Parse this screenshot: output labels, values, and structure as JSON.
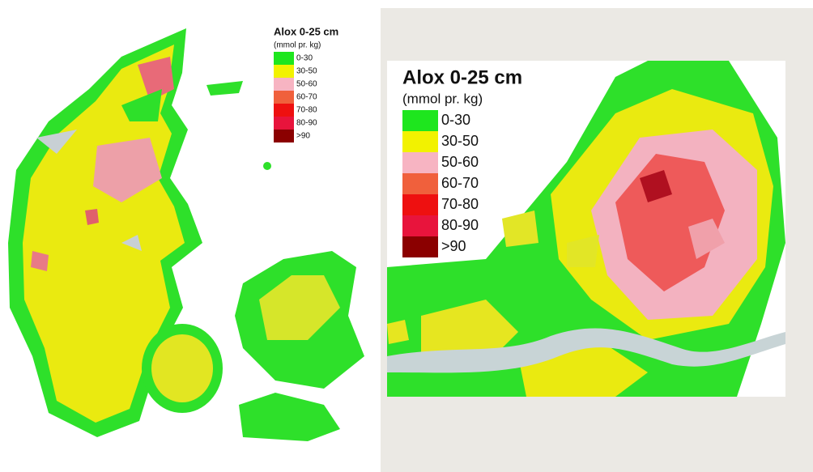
{
  "maps": [
    {
      "legend": {
        "title": "Alox 0-25 cm",
        "unit": "(mmol pr. kg)",
        "items": [
          {
            "label": "0-30",
            "color": "#1ee61e"
          },
          {
            "label": "30-50",
            "color": "#f2f200"
          },
          {
            "label": "50-60",
            "color": "#f7b4c2"
          },
          {
            "label": "60-70",
            "color": "#f0603c"
          },
          {
            "label": "70-80",
            "color": "#ee1010"
          },
          {
            "label": "80-90",
            "color": "#e8143c"
          },
          {
            "label": ">90",
            "color": "#8b0000"
          }
        ]
      }
    },
    {
      "legend": {
        "title": "Alox 0-25 cm",
        "unit": "(mmol pr. kg)",
        "items": [
          {
            "label": "0-30",
            "color": "#1ee61e"
          },
          {
            "label": "30-50",
            "color": "#f2f200"
          },
          {
            "label": "50-60",
            "color": "#f7b4c2"
          },
          {
            "label": "60-70",
            "color": "#f0603c"
          },
          {
            "label": "70-80",
            "color": "#ee1010"
          },
          {
            "label": "80-90",
            "color": "#e8143c"
          },
          {
            "label": ">90",
            "color": "#8b0000"
          }
        ]
      }
    }
  ]
}
